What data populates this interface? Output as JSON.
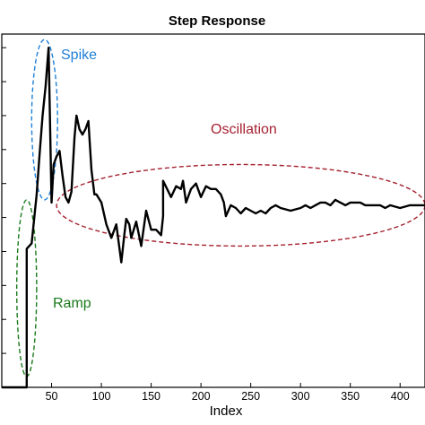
{
  "chart_data": {
    "type": "line",
    "title": "Step Response",
    "xlabel": "Index",
    "ylabel": "",
    "xlim": [
      0,
      425
    ],
    "ylim": [
      0,
      1.3
    ],
    "xticks": [
      50,
      100,
      150,
      200,
      250,
      300,
      350,
      400
    ],
    "yticks": [
      0.125,
      0.25,
      0.375,
      0.5,
      0.625,
      0.75,
      0.875,
      1.0,
      1.125,
      1.25
    ],
    "grid": false,
    "line_color": "#000000",
    "series": [
      {
        "x": [
          0,
          25,
          25,
          30,
          35,
          38,
          41,
          44,
          47,
          50,
          52,
          55,
          58,
          61,
          64,
          67,
          70,
          73,
          75,
          78,
          81,
          84,
          87,
          90,
          93,
          95,
          100,
          105,
          110,
          115,
          120,
          123,
          125,
          128,
          130,
          135,
          140,
          145,
          150,
          155,
          160,
          162,
          162,
          170,
          175,
          180,
          182,
          185,
          190,
          195,
          200,
          205,
          210,
          215,
          220,
          223,
          225,
          230,
          235,
          240,
          245,
          250,
          255,
          260,
          265,
          270,
          275,
          280,
          290,
          300,
          305,
          310,
          315,
          320,
          325,
          330,
          335,
          340,
          345,
          350,
          360,
          365,
          370,
          380,
          385,
          390,
          400,
          410,
          420,
          425
        ],
        "y": [
          0.0,
          0.0,
          0.51,
          0.53,
          0.71,
          0.86,
          1.0,
          1.11,
          1.25,
          0.68,
          0.82,
          0.85,
          0.87,
          0.78,
          0.7,
          0.68,
          0.72,
          0.92,
          1.0,
          0.95,
          0.93,
          0.95,
          0.98,
          0.8,
          0.71,
          0.71,
          0.68,
          0.6,
          0.55,
          0.6,
          0.46,
          0.56,
          0.62,
          0.6,
          0.55,
          0.61,
          0.52,
          0.65,
          0.58,
          0.58,
          0.56,
          0.63,
          0.76,
          0.7,
          0.74,
          0.73,
          0.76,
          0.68,
          0.73,
          0.75,
          0.7,
          0.74,
          0.73,
          0.73,
          0.71,
          0.68,
          0.63,
          0.67,
          0.66,
          0.64,
          0.66,
          0.65,
          0.64,
          0.65,
          0.64,
          0.66,
          0.67,
          0.66,
          0.65,
          0.66,
          0.67,
          0.66,
          0.67,
          0.68,
          0.68,
          0.67,
          0.69,
          0.68,
          0.67,
          0.68,
          0.68,
          0.67,
          0.67,
          0.67,
          0.66,
          0.67,
          0.66,
          0.67,
          0.67,
          0.67
        ]
      }
    ],
    "annotations": [
      {
        "text": "Spike",
        "color": "#1f7fd6",
        "ellipse_x": [
          30,
          56
        ],
        "ellipse_y": [
          0.69,
          1.28
        ]
      },
      {
        "text": "Oscillation",
        "color": "#a52231",
        "ellipse_x": [
          55,
          425
        ],
        "ellipse_y": [
          0.52,
          0.82
        ]
      },
      {
        "text": "Ramp",
        "color": "#1a7a1a",
        "ellipse_x": [
          15,
          35
        ],
        "ellipse_y": [
          0.04,
          0.69
        ]
      }
    ]
  }
}
